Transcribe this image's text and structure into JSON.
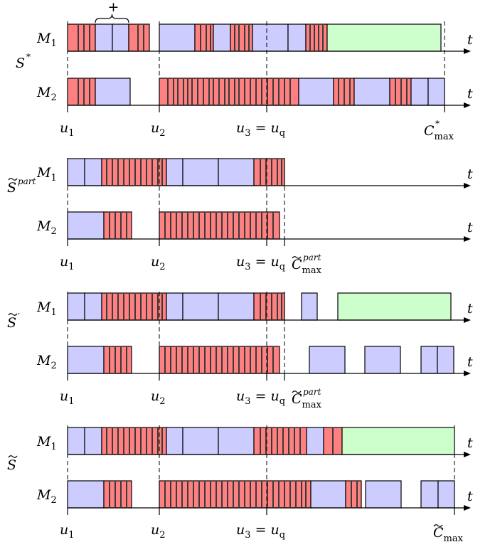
{
  "colors": {
    "red": "#ff8080",
    "blue": "#ccccff",
    "green": "#ccffcc"
  },
  "panels": [
    {
      "name": "s-star",
      "schedule": {
        "base": "S",
        "sup": "*",
        "tilde": false
      },
      "machines": [
        {
          "label": "M",
          "sub": "1",
          "blocks": [
            {
              "c": "red",
              "x0": 95,
              "x1": 134,
              "lines": [
                110,
                118,
                126
              ]
            },
            {
              "c": "blue",
              "x0": 134,
              "x1": 158
            },
            {
              "c": "blue",
              "x0": 158,
              "x1": 181
            },
            {
              "c": "red",
              "x0": 181,
              "x1": 210,
              "lines": [
                194,
                202
              ]
            },
            {
              "c": "blue",
              "x0": 224,
              "x1": 274
            },
            {
              "c": "red",
              "x0": 274,
              "x1": 300,
              "lines": [
                282,
                290,
                296
              ]
            },
            {
              "c": "blue",
              "x0": 300,
              "x1": 324
            },
            {
              "c": "red",
              "x0": 324,
              "x1": 355,
              "lines": [
                330,
                336,
                344,
                350
              ]
            },
            {
              "c": "blue",
              "x0": 355,
              "x1": 405
            },
            {
              "c": "blue",
              "x0": 405,
              "x1": 430
            },
            {
              "c": "red",
              "x0": 430,
              "x1": 460,
              "lines": [
                436,
                442,
                448,
                454
              ]
            },
            {
              "c": "green",
              "x0": 460,
              "x1": 620
            }
          ]
        },
        {
          "label": "M",
          "sub": "2",
          "blocks": [
            {
              "c": "red",
              "x0": 95,
              "x1": 134,
              "lines": [
                110,
                118,
                126
              ]
            },
            {
              "c": "blue",
              "x0": 134,
              "x1": 183
            },
            {
              "c": "red",
              "x0": 224,
              "x1": 420,
              "lines": [
                236,
                244,
                250,
                258,
                264,
                270,
                278,
                286,
                294,
                300,
                308,
                316,
                322,
                330,
                336,
                344,
                352,
                360,
                368,
                376,
                384,
                392,
                400,
                408
              ]
            },
            {
              "c": "blue",
              "x0": 420,
              "x1": 469
            },
            {
              "c": "red",
              "x0": 469,
              "x1": 498,
              "lines": [
                476,
                484,
                492
              ]
            },
            {
              "c": "blue",
              "x0": 498,
              "x1": 548
            },
            {
              "c": "red",
              "x0": 548,
              "x1": 578,
              "lines": [
                556,
                564,
                572
              ]
            },
            {
              "c": "blue",
              "x0": 578,
              "x1": 602
            },
            {
              "c": "blue",
              "x0": 602,
              "x1": 625
            }
          ]
        }
      ],
      "brace": {
        "x0": 134,
        "x1": 181,
        "symbol": "+"
      },
      "end_dash_x": 625,
      "end_label": {
        "base": "C",
        "sub": "max",
        "sup": "*",
        "tilde": false
      }
    },
    {
      "name": "s-tilde-part",
      "schedule": {
        "base": "S",
        "sup": "part",
        "tilde": true
      },
      "machines": [
        {
          "label": "M",
          "sub": "1",
          "blocks": [
            {
              "c": "blue",
              "x0": 95,
              "x1": 119
            },
            {
              "c": "blue",
              "x0": 119,
              "x1": 143
            },
            {
              "c": "red",
              "x0": 143,
              "x1": 234,
              "lines": [
                150,
                158,
                166,
                174,
                182,
                190,
                198,
                206,
                214,
                222,
                228
              ]
            },
            {
              "c": "blue",
              "x0": 234,
              "x1": 257
            },
            {
              "c": "blue",
              "x0": 257,
              "x1": 307
            },
            {
              "c": "blue",
              "x0": 307,
              "x1": 357
            },
            {
              "c": "red",
              "x0": 357,
              "x1": 400,
              "lines": [
                366,
                374,
                382,
                390,
                396
              ]
            }
          ]
        },
        {
          "label": "M",
          "sub": "2",
          "blocks": [
            {
              "c": "blue",
              "x0": 95,
              "x1": 146
            },
            {
              "c": "red",
              "x0": 146,
              "x1": 185,
              "lines": [
                154,
                162,
                170,
                178
              ]
            },
            {
              "c": "red",
              "x0": 224,
              "x1": 393,
              "lines": [
                232,
                240,
                248,
                256,
                264,
                272,
                280,
                288,
                296,
                304,
                312,
                320,
                328,
                336,
                344,
                352,
                360,
                368,
                376,
                384
              ]
            }
          ]
        }
      ],
      "end_dash_x": 400,
      "end_label": {
        "base": "C",
        "sub": "max",
        "sup": "part",
        "tilde": true
      }
    },
    {
      "name": "s-tilde-prime",
      "schedule": {
        "base": "S",
        "sup": "′",
        "tilde": true
      },
      "machines": [
        {
          "label": "M",
          "sub": "1",
          "blocks": [
            {
              "c": "blue",
              "x0": 95,
              "x1": 119
            },
            {
              "c": "blue",
              "x0": 119,
              "x1": 143
            },
            {
              "c": "red",
              "x0": 143,
              "x1": 234,
              "lines": [
                150,
                158,
                166,
                174,
                182,
                190,
                198,
                206,
                214,
                222,
                228
              ]
            },
            {
              "c": "blue",
              "x0": 234,
              "x1": 257
            },
            {
              "c": "blue",
              "x0": 257,
              "x1": 307
            },
            {
              "c": "blue",
              "x0": 307,
              "x1": 357
            },
            {
              "c": "red",
              "x0": 357,
              "x1": 400,
              "lines": [
                366,
                374,
                382,
                390,
                396
              ]
            },
            {
              "c": "blue",
              "x0": 424,
              "x1": 446
            },
            {
              "c": "green",
              "x0": 475,
              "x1": 634
            }
          ]
        },
        {
          "label": "M",
          "sub": "2",
          "blocks": [
            {
              "c": "blue",
              "x0": 95,
              "x1": 146
            },
            {
              "c": "red",
              "x0": 146,
              "x1": 185,
              "lines": [
                154,
                162,
                170,
                178
              ]
            },
            {
              "c": "red",
              "x0": 224,
              "x1": 393,
              "lines": [
                232,
                240,
                248,
                256,
                264,
                272,
                280,
                288,
                296,
                304,
                312,
                320,
                328,
                336,
                344,
                352,
                360,
                368,
                376,
                384
              ]
            },
            {
              "c": "blue",
              "x0": 435,
              "x1": 485
            },
            {
              "c": "blue",
              "x0": 513,
              "x1": 563
            },
            {
              "c": "blue",
              "x0": 592,
              "x1": 615
            },
            {
              "c": "blue",
              "x0": 615,
              "x1": 638
            }
          ]
        }
      ],
      "end_dash_x": 400,
      "end_label": {
        "base": "C",
        "sub": "max",
        "sup": "part",
        "tilde": true
      }
    },
    {
      "name": "s-tilde",
      "schedule": {
        "base": "S",
        "sup": "",
        "tilde": true
      },
      "machines": [
        {
          "label": "M",
          "sub": "1",
          "blocks": [
            {
              "c": "blue",
              "x0": 95,
              "x1": 119
            },
            {
              "c": "blue",
              "x0": 119,
              "x1": 143
            },
            {
              "c": "red",
              "x0": 143,
              "x1": 234,
              "lines": [
                150,
                158,
                166,
                174,
                182,
                190,
                198,
                206,
                214,
                222,
                228
              ]
            },
            {
              "c": "blue",
              "x0": 234,
              "x1": 257
            },
            {
              "c": "blue",
              "x0": 257,
              "x1": 307
            },
            {
              "c": "blue",
              "x0": 307,
              "x1": 357
            },
            {
              "c": "red",
              "x0": 357,
              "x1": 431,
              "lines": [
                366,
                374,
                382,
                390,
                398,
                406,
                414,
                422
              ]
            },
            {
              "c": "blue",
              "x0": 431,
              "x1": 455
            },
            {
              "c": "red",
              "x0": 455,
              "x1": 481,
              "lines": [
                468
              ]
            },
            {
              "c": "green",
              "x0": 481,
              "x1": 639
            }
          ]
        },
        {
          "label": "M",
          "sub": "2",
          "blocks": [
            {
              "c": "blue",
              "x0": 95,
              "x1": 146
            },
            {
              "c": "red",
              "x0": 146,
              "x1": 185,
              "lines": [
                154,
                162,
                170,
                178
              ]
            },
            {
              "c": "red",
              "x0": 224,
              "x1": 437,
              "lines": [
                232,
                240,
                248,
                256,
                264,
                272,
                280,
                288,
                296,
                304,
                312,
                320,
                328,
                336,
                344,
                352,
                360,
                368,
                376,
                384,
                392,
                400,
                408,
                416,
                424,
                430
              ]
            },
            {
              "c": "blue",
              "x0": 437,
              "x1": 486
            },
            {
              "c": "red",
              "x0": 486,
              "x1": 508,
              "lines": [
                494,
                502
              ]
            },
            {
              "c": "blue",
              "x0": 514,
              "x1": 564
            },
            {
              "c": "blue",
              "x0": 592,
              "x1": 616
            },
            {
              "c": "blue",
              "x0": 616,
              "x1": 639
            }
          ]
        }
      ],
      "end_dash_x": 639,
      "end_label": {
        "base": "C",
        "sub": "max",
        "sup": "",
        "tilde": true
      }
    }
  ],
  "axis_label": "t",
  "times": {
    "u1": "u",
    "u1_sub": "1",
    "u2": "u",
    "u2_sub": "2",
    "u3": "u",
    "u3_sub": "3",
    "eq": "=",
    "uq": "u",
    "uq_sub": "q"
  }
}
